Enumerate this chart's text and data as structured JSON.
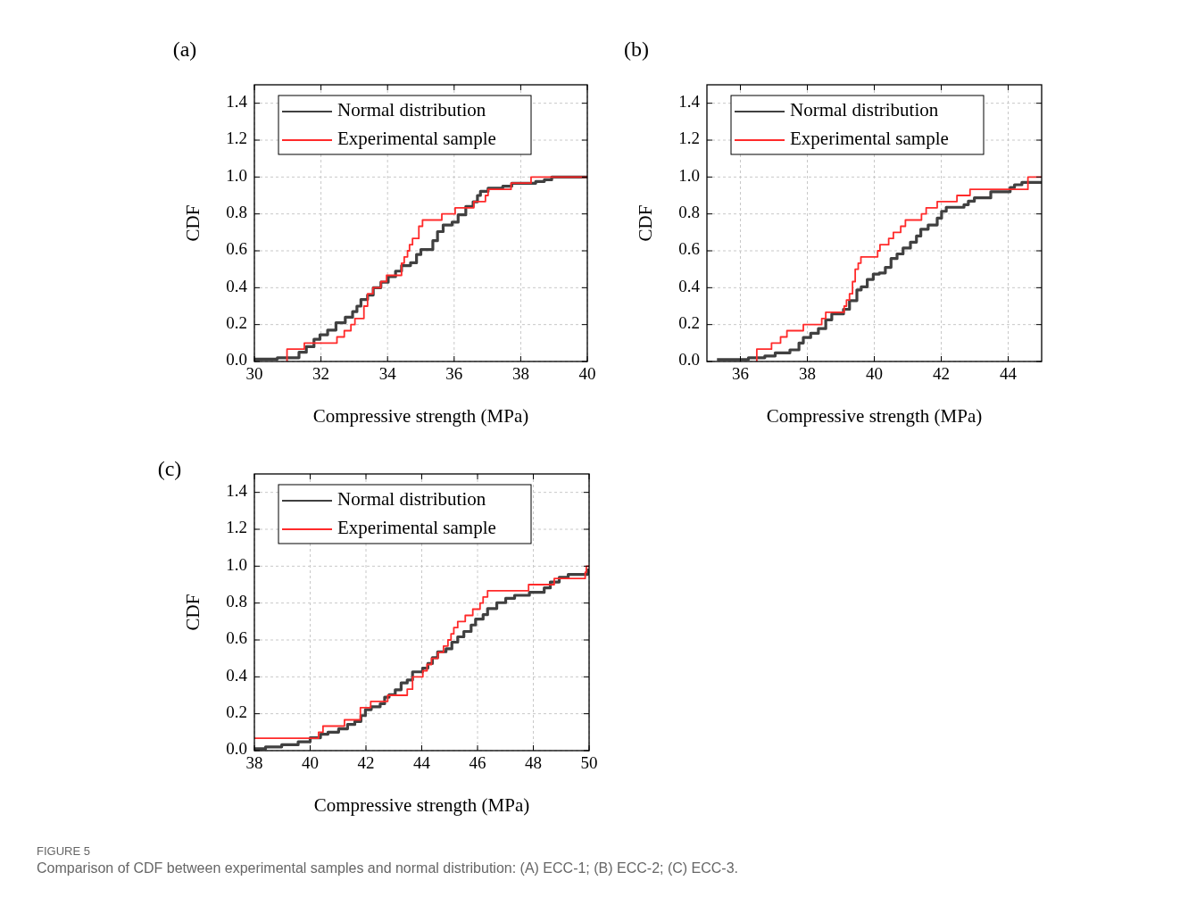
{
  "chart_data": [
    {
      "type": "step",
      "title": "(a)",
      "xlabel": "Compressive strength (MPa)",
      "ylabel": "CDF",
      "xlim": [
        30,
        40
      ],
      "xticks": [
        30,
        32,
        34,
        36,
        38,
        40
      ],
      "ylim": [
        0,
        1.5
      ],
      "yticks": [
        {
          "value": 0,
          "label": "0.0"
        },
        {
          "value": 0.2,
          "label": "0.2"
        },
        {
          "value": 0.4,
          "label": "0.4"
        },
        {
          "value": 0.6,
          "label": "0.6"
        },
        {
          "value": 0.8,
          "label": "0.8"
        },
        {
          "value": 1,
          "label": "1.0"
        },
        {
          "value": 1.2,
          "label": "1.2"
        },
        {
          "value": 1.4,
          "label": "1.4"
        }
      ],
      "grid": true,
      "legend": "top left",
      "marker": "none",
      "line_style": "solid",
      "series": [
        {
          "name": "Normal distribution",
          "color": "#404040",
          "x": [
            30,
            30.69,
            31.34,
            31.56,
            31.79,
            31.97,
            32.2,
            32.45,
            32.73,
            32.95,
            33.08,
            33.2,
            33.4,
            33.57,
            33.8,
            34.02,
            34.24,
            34.42,
            34.69,
            34.87,
            35.0,
            35.36,
            35.5,
            35.67,
            35.94,
            36.12,
            36.35,
            36.57,
            36.7,
            36.79,
            37.02,
            37.46,
            37.73,
            38.45,
            38.71,
            38.93,
            40
          ],
          "values": [
            0.013,
            0.02,
            0.05,
            0.08,
            0.12,
            0.145,
            0.17,
            0.21,
            0.24,
            0.27,
            0.3,
            0.336,
            0.36,
            0.4,
            0.43,
            0.46,
            0.49,
            0.52,
            0.535,
            0.58,
            0.607,
            0.655,
            0.704,
            0.74,
            0.755,
            0.795,
            0.84,
            0.866,
            0.9,
            0.922,
            0.94,
            0.95,
            0.966,
            0.976,
            0.985,
            1.0,
            1.0
          ]
        },
        {
          "name": "Experimental sample",
          "color": "#ff2a2a",
          "x": [
            30.98,
            30.98,
            31.5,
            32.48,
            32.7,
            32.9,
            33.02,
            33.29,
            33.4,
            33.56,
            33.8,
            33.97,
            34.42,
            34.5,
            34.6,
            34.66,
            34.75,
            34.94,
            35.05,
            35.63,
            36.03,
            36.59,
            36.94,
            37.02,
            37.71,
            38.31,
            40
          ],
          "values": [
            0,
            0.067,
            0.1,
            0.133,
            0.167,
            0.2,
            0.233,
            0.3,
            0.367,
            0.4,
            0.433,
            0.467,
            0.533,
            0.567,
            0.6,
            0.633,
            0.667,
            0.733,
            0.767,
            0.8,
            0.833,
            0.867,
            0.9,
            0.933,
            0.967,
            1.0,
            1.0
          ]
        }
      ],
      "annotations": [
        "FIGURE 5",
        "Comparison of CDF between experimental samples and normal distribution: (A) ECC-1; (B) ECC-2; (C) ECC-3."
      ]
    },
    {
      "type": "step",
      "title": "(b)",
      "xlabel": "Compressive strength (MPa)",
      "ylabel": "CDF",
      "xlim": [
        35,
        45
      ],
      "xticks": [
        36,
        38,
        40,
        42,
        44
      ],
      "ylim": [
        0,
        1.5
      ],
      "yticks": [
        {
          "value": 0,
          "label": "0.0"
        },
        {
          "value": 0.2,
          "label": "0.2"
        },
        {
          "value": 0.4,
          "label": "0.4"
        },
        {
          "value": 0.6,
          "label": "0.6"
        },
        {
          "value": 0.8,
          "label": "0.8"
        },
        {
          "value": 1,
          "label": "1.0"
        },
        {
          "value": 1.2,
          "label": "1.2"
        },
        {
          "value": 1.4,
          "label": "1.4"
        }
      ],
      "grid": true,
      "legend": "top left",
      "marker": "none",
      "line_style": "solid",
      "series": [
        {
          "name": "Normal distribution",
          "color": "#404040",
          "x": [
            35.3,
            36.24,
            36.73,
            37.04,
            37.48,
            37.75,
            37.88,
            38.1,
            38.33,
            38.55,
            38.73,
            39.08,
            39.26,
            39.48,
            39.61,
            39.79,
            39.97,
            40.15,
            40.33,
            40.5,
            40.68,
            40.86,
            41.08,
            41.26,
            41.39,
            41.61,
            41.88,
            42.01,
            42.15,
            42.68,
            42.81,
            42.99,
            43.48,
            44.06,
            44.19,
            44.41,
            45
          ],
          "values": [
            0.011,
            0.02,
            0.03,
            0.047,
            0.063,
            0.1,
            0.13,
            0.153,
            0.178,
            0.226,
            0.258,
            0.283,
            0.33,
            0.388,
            0.405,
            0.445,
            0.474,
            0.48,
            0.51,
            0.558,
            0.583,
            0.615,
            0.647,
            0.68,
            0.717,
            0.74,
            0.777,
            0.814,
            0.836,
            0.85,
            0.869,
            0.887,
            0.92,
            0.943,
            0.958,
            0.971,
            0.979
          ]
        },
        {
          "name": "Experimental sample",
          "color": "#ff2a2a",
          "x": [
            36.49,
            36.49,
            36.93,
            37.2,
            37.39,
            37.88,
            38.43,
            38.55,
            39.1,
            39.17,
            39.26,
            39.35,
            39.43,
            39.52,
            39.6,
            40.1,
            40.17,
            40.43,
            40.57,
            40.79,
            40.93,
            41.41,
            41.55,
            41.88,
            42.47,
            42.86,
            44.59,
            45
          ],
          "values": [
            0,
            0.067,
            0.1,
            0.133,
            0.167,
            0.2,
            0.233,
            0.267,
            0.3,
            0.333,
            0.367,
            0.433,
            0.5,
            0.533,
            0.567,
            0.6,
            0.633,
            0.667,
            0.7,
            0.733,
            0.767,
            0.8,
            0.833,
            0.867,
            0.9,
            0.933,
            1.0,
            1.0
          ]
        }
      ]
    },
    {
      "type": "step",
      "title": "(c)",
      "xlabel": "Compressive strength (MPa)",
      "ylabel": "CDF",
      "xlim": [
        38,
        50
      ],
      "xticks": [
        38,
        40,
        42,
        44,
        46,
        48,
        50
      ],
      "ylim": [
        0,
        1.5
      ],
      "yticks": [
        {
          "value": 0,
          "label": "0.0"
        },
        {
          "value": 0.2,
          "label": "0.2"
        },
        {
          "value": 0.4,
          "label": "0.4"
        },
        {
          "value": 0.6,
          "label": "0.6"
        },
        {
          "value": 0.8,
          "label": "0.8"
        },
        {
          "value": 1,
          "label": "1.0"
        },
        {
          "value": 1.2,
          "label": "1.2"
        },
        {
          "value": 1.4,
          "label": "1.4"
        }
      ],
      "grid": true,
      "legend": "top left",
      "marker": "none",
      "line_style": "solid",
      "series": [
        {
          "name": "Normal distribution",
          "color": "#404040",
          "x": [
            38,
            38.4,
            38.98,
            39.57,
            40.0,
            40.37,
            40.64,
            41.02,
            41.34,
            41.6,
            41.82,
            41.98,
            42.19,
            42.51,
            42.67,
            42.83,
            43.05,
            43.26,
            43.48,
            43.67,
            44.03,
            44.22,
            44.38,
            44.57,
            44.87,
            45.08,
            45.29,
            45.51,
            45.77,
            45.93,
            46.2,
            46.36,
            46.69,
            47.01,
            47.33,
            47.86,
            48.39,
            48.61,
            48.93,
            49.25,
            49.95,
            50
          ],
          "values": [
            0.01,
            0.02,
            0.032,
            0.048,
            0.07,
            0.089,
            0.1,
            0.118,
            0.142,
            0.158,
            0.19,
            0.222,
            0.238,
            0.254,
            0.29,
            0.303,
            0.33,
            0.367,
            0.383,
            0.427,
            0.447,
            0.472,
            0.504,
            0.536,
            0.552,
            0.588,
            0.617,
            0.646,
            0.681,
            0.713,
            0.737,
            0.77,
            0.802,
            0.826,
            0.842,
            0.858,
            0.882,
            0.914,
            0.939,
            0.955,
            0.979,
            0.979
          ]
        },
        {
          "name": "Experimental sample",
          "color": "#ff2a2a",
          "x": [
            38,
            40.3,
            40.46,
            41.23,
            41.8,
            42.17,
            42.78,
            43.48,
            43.67,
            44.04,
            44.19,
            44.35,
            44.58,
            44.78,
            44.94,
            45.05,
            45.15,
            45.29,
            45.56,
            45.83,
            46.09,
            46.2,
            46.36,
            47.83,
            48.75,
            49.86,
            49.9,
            50
          ],
          "values": [
            0.067,
            0.1,
            0.133,
            0.167,
            0.233,
            0.267,
            0.3,
            0.333,
            0.4,
            0.433,
            0.467,
            0.5,
            0.533,
            0.567,
            0.6,
            0.633,
            0.667,
            0.7,
            0.733,
            0.767,
            0.8,
            0.833,
            0.867,
            0.9,
            0.933,
            0.967,
            1.0,
            1.0
          ]
        }
      ]
    }
  ]
}
